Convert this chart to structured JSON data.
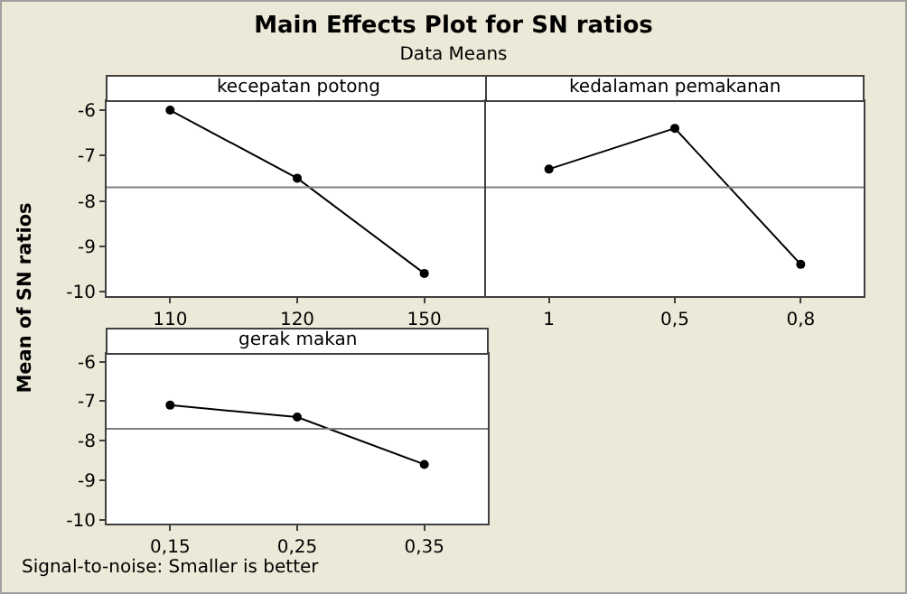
{
  "chart_data": [
    {
      "type": "line",
      "title": "Main Effects Plot for SN ratios",
      "subtitle": "Data Means",
      "ylabel": "Mean of SN ratios",
      "xlabel": "kecepatan potong",
      "categories": [
        "110",
        "120",
        "150"
      ],
      "series": [
        {
          "color": "#000000",
          "values": [
            -6.0,
            -7.5,
            -9.6
          ]
        }
      ],
      "ylim": [
        -10.1,
        -5.8
      ],
      "yticks": [
        -10,
        -9,
        -8,
        -7,
        -6
      ],
      "ref_lines": [
        {
          "axis": "y",
          "value": -7.7,
          "color": "#808080"
        }
      ],
      "marker": "circle",
      "line_style": "solid",
      "grid": false
    },
    {
      "type": "line",
      "xlabel": "kedalaman pemakanan",
      "categories": [
        "1",
        "0,5",
        "0,8"
      ],
      "series": [
        {
          "color": "#000000",
          "values": [
            -7.3,
            -6.4,
            -9.4
          ]
        }
      ],
      "ylim": [
        -10.1,
        -5.8
      ],
      "yticks": [
        -10,
        -9,
        -8,
        -7,
        -6
      ],
      "tick_labels": "x",
      "ref_lines": [
        {
          "axis": "y",
          "value": -7.7,
          "color": "#808080"
        }
      ],
      "marker": "circle",
      "line_style": "solid",
      "grid": false
    },
    {
      "type": "line",
      "xlabel": "gerak makan",
      "categories": [
        "0,15",
        "0,25",
        "0,35"
      ],
      "series": [
        {
          "color": "#000000",
          "values": [
            -7.1,
            -7.4,
            -8.6
          ]
        }
      ],
      "ylim": [
        -10.1,
        -5.8
      ],
      "yticks": [
        -10,
        -9,
        -8,
        -7,
        -6
      ],
      "ref_lines": [
        {
          "axis": "y",
          "value": -7.7,
          "color": "#808080"
        }
      ],
      "marker": "circle",
      "line_style": "solid",
      "grid": false,
      "annotations": [
        "Signal-to-noise: Smaller is better"
      ]
    }
  ]
}
